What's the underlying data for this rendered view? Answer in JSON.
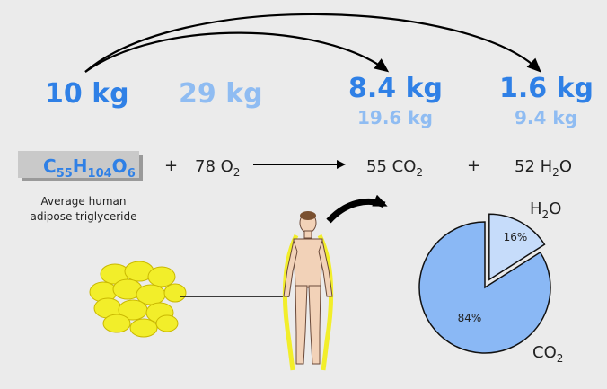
{
  "masses": {
    "triglyceride": "10 kg",
    "oxygen": "29 kg",
    "co2_bold": "8.4 kg",
    "co2_light": "19.6 kg",
    "h2o_bold": "1.6 kg",
    "h2o_light": "9.4 kg"
  },
  "equation": {
    "formula_C": "C",
    "sub_C": "55",
    "formula_H": "H",
    "sub_H": "104",
    "formula_O": "O",
    "sub_O": "6",
    "plus1": "+",
    "o2_coef": "78 O",
    "o2_sub": "2",
    "co2_coef": "55 CO",
    "co2_sub": "2",
    "plus2": "+",
    "h2o_coef": "52 H",
    "h2o_sub": "2",
    "h2o_tail": "O"
  },
  "caption": [
    "Average human",
    "adipose triglyceride"
  ],
  "pie": {
    "slices": [
      {
        "label_main": "H",
        "label_sub": "2",
        "label_tail": "O",
        "percent": 16,
        "value_label": "16%",
        "color": "#c6dcfa"
      },
      {
        "label_main": "CO",
        "label_sub": "2",
        "label_tail": "",
        "percent": 84,
        "value_label": "84%",
        "color": "#8ab8f5"
      }
    ]
  },
  "colors": {
    "bold_blue": "#2f80e6",
    "light_blue": "#8fbcf2",
    "background": "#ebebeb",
    "fat": "#f2ee2a"
  }
}
